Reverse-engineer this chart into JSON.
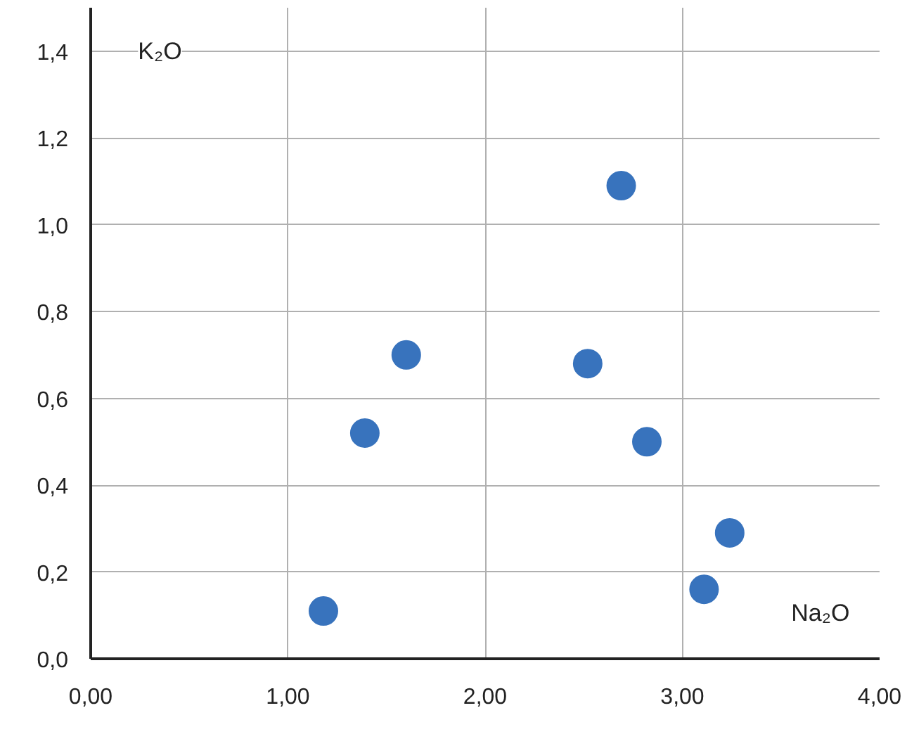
{
  "chart_data": {
    "type": "scatter",
    "xlabel": "Na₂O",
    "ylabel": "K₂O",
    "x": [
      1.18,
      1.39,
      1.6,
      2.52,
      2.69,
      2.82,
      3.11,
      3.24
    ],
    "values": [
      0.11,
      0.52,
      0.7,
      0.68,
      1.09,
      0.5,
      0.16,
      0.29
    ],
    "color": "#3873bd",
    "marker": "circle",
    "grid": true,
    "xlim": [
      0,
      4
    ],
    "ylim": [
      0,
      1.5
    ],
    "xticks": [
      {
        "value": 0,
        "label": "0,00"
      },
      {
        "value": 1,
        "label": "1,00"
      },
      {
        "value": 2,
        "label": "2,00"
      },
      {
        "value": 3,
        "label": "3,00"
      },
      {
        "value": 4,
        "label": "4,00"
      }
    ],
    "yticks": [
      {
        "value": 0,
        "label": "0,0"
      },
      {
        "value": 0.2,
        "label": "0,2"
      },
      {
        "value": 0.4,
        "label": "0,4"
      },
      {
        "value": 0.6,
        "label": "0,6"
      },
      {
        "value": 0.8,
        "label": "0,8"
      },
      {
        "value": 1.0,
        "label": "1,0"
      },
      {
        "value": 1.2,
        "label": "1,2"
      },
      {
        "value": 1.4,
        "label": "1,4"
      }
    ]
  }
}
